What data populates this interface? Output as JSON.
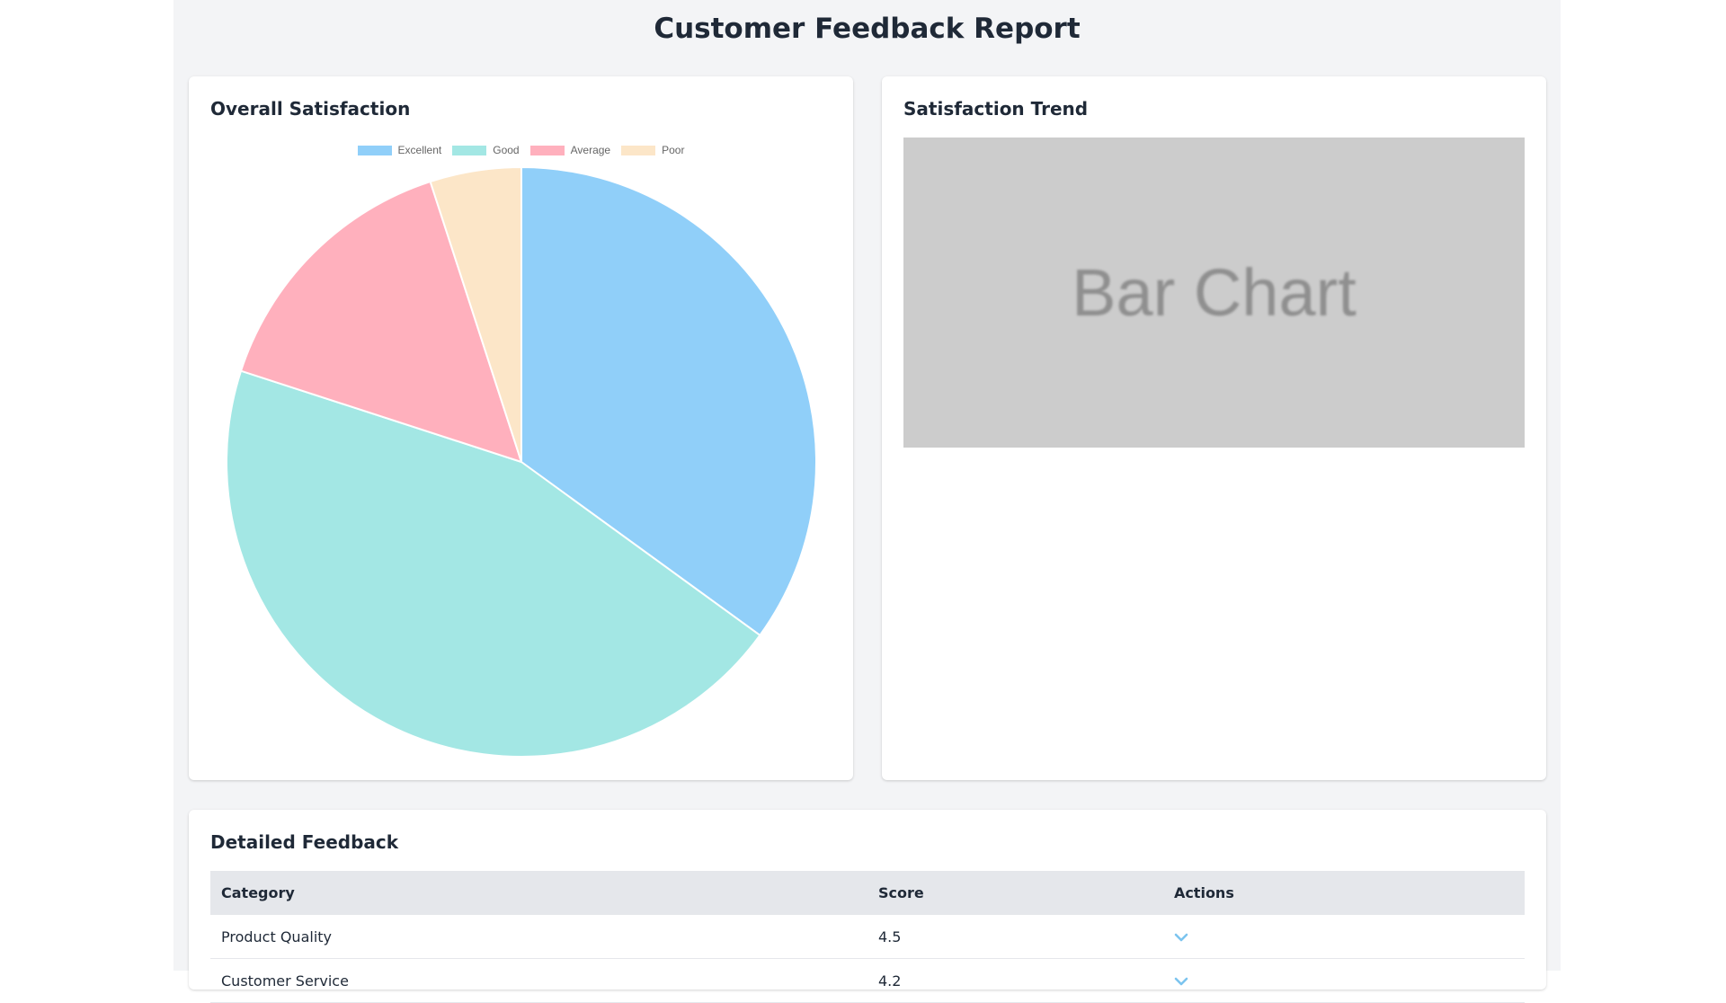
{
  "page": {
    "title": "Customer Feedback Report"
  },
  "satisfaction": {
    "title": "Overall Satisfaction",
    "legend": [
      {
        "label": "Excellent",
        "color": "#90cff9"
      },
      {
        "label": "Good",
        "color": "#a3e7e4"
      },
      {
        "label": "Average",
        "color": "#ffb0bd"
      },
      {
        "label": "Poor",
        "color": "#fce6c8"
      }
    ]
  },
  "chart_data": {
    "type": "pie",
    "labels": [
      "Excellent",
      "Good",
      "Average",
      "Poor"
    ],
    "values": [
      35,
      45,
      15,
      5
    ],
    "colors": [
      "#90cff9",
      "#a3e7e4",
      "#ffb0bd",
      "#fce6c8"
    ],
    "legend_position": "top"
  },
  "trend": {
    "title": "Satisfaction Trend",
    "placeholder_text": "Bar Chart"
  },
  "detail": {
    "title": "Detailed Feedback",
    "columns": {
      "category": "Category",
      "score": "Score",
      "actions": "Actions"
    },
    "rows": [
      {
        "category": "Product Quality",
        "score": "4.5",
        "action_icon": "chevron-down-icon"
      },
      {
        "category": "Customer Service",
        "score": "4.2",
        "action_icon": "chevron-down-icon"
      }
    ]
  }
}
